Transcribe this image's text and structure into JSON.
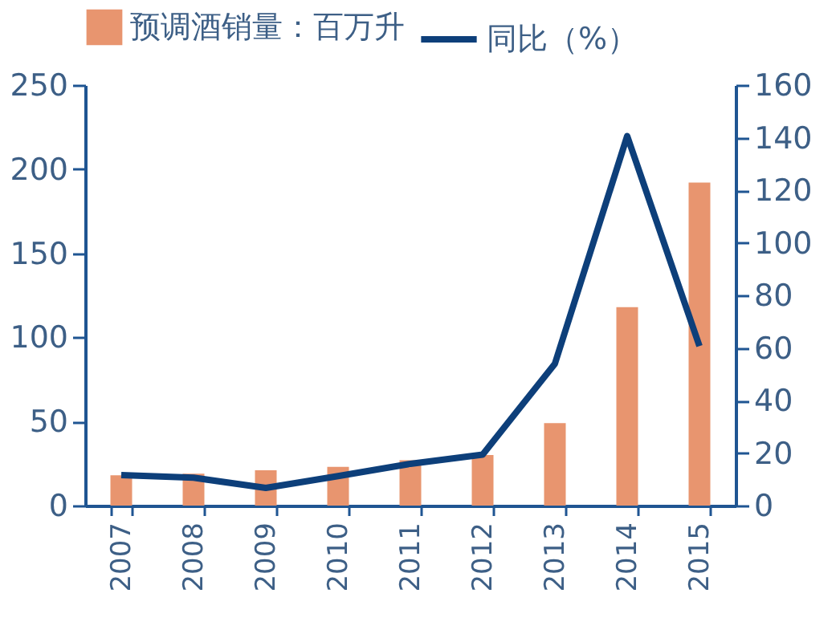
{
  "chart_data": {
    "type": "bar",
    "categories": [
      "2007",
      "2008",
      "2009",
      "2010",
      "2011",
      "2012",
      "2013",
      "2014",
      "2015"
    ],
    "series": [
      {
        "name": "预调酒销量：百万升",
        "color": "#e8956f",
        "values": [
          18,
          19,
          21,
          23,
          27,
          30,
          49,
          118,
          192
        ]
      },
      {
        "name": "同比（%）",
        "type": "line",
        "axis": "y2",
        "color": "#0d3f7a",
        "values": [
          11.6,
          10.6,
          6.7,
          11.2,
          15.9,
          19.4,
          54,
          140.6,
          60.7
        ]
      }
    ],
    "ylim": [
      0,
      250
    ],
    "yticks": [
      0,
      50,
      100,
      150,
      200,
      250
    ],
    "y2lim": [
      0,
      160
    ],
    "y2ticks": [
      0,
      20,
      40,
      60,
      80,
      100,
      120,
      140,
      160
    ],
    "grid": false,
    "legend": "top",
    "marker": "none",
    "line_style": "solid"
  }
}
